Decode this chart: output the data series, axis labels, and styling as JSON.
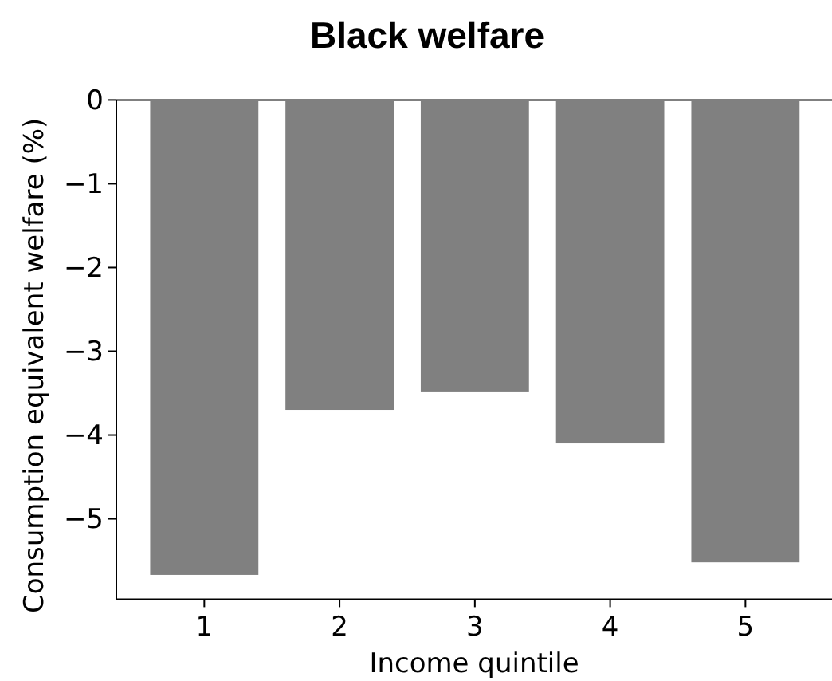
{
  "chart_data": {
    "type": "bar",
    "title": "Black welfare",
    "xlabel": "Income quintile",
    "ylabel": "Consumption equivalent welfare (%)",
    "categories": [
      "1",
      "2",
      "3",
      "4",
      "5"
    ],
    "values": [
      -5.67,
      -3.7,
      -3.48,
      -4.1,
      -5.52
    ],
    "color": "#808080",
    "ylim": [
      -5.96,
      0
    ],
    "yticks": [
      {
        "value": 0,
        "label": "0"
      },
      {
        "value": -1,
        "label": "−1"
      },
      {
        "value": -2,
        "label": "−2"
      },
      {
        "value": -3,
        "label": "−3"
      },
      {
        "value": -4,
        "label": "−4"
      },
      {
        "value": -5,
        "label": "−5"
      }
    ],
    "grid": false
  }
}
